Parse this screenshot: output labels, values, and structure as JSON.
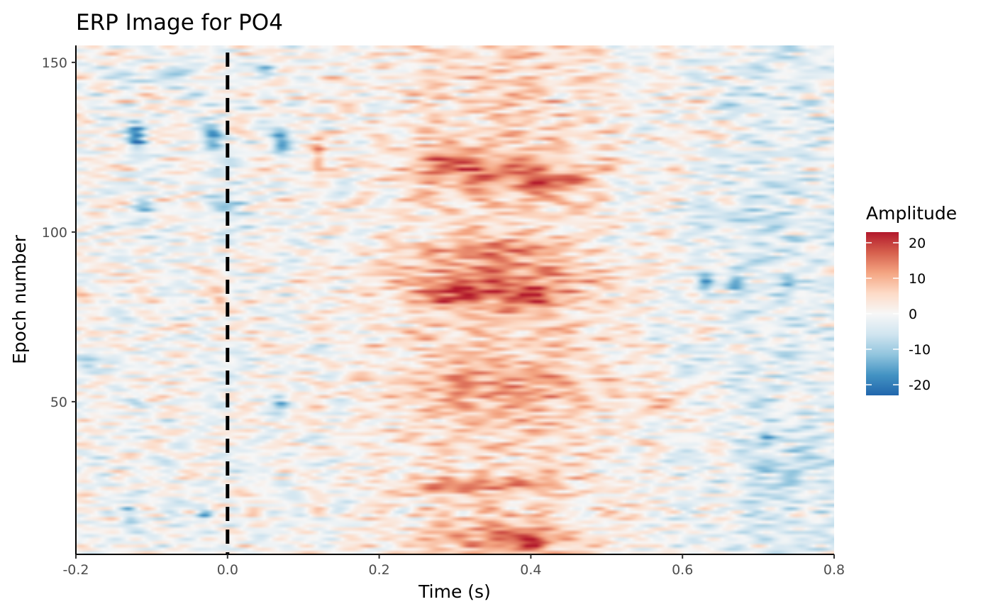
{
  "chart_data": {
    "type": "heatmap",
    "title": "ERP Image for PO4",
    "xlabel": "Time (s)",
    "ylabel": "Epoch number",
    "xlim": [
      -0.2,
      0.8
    ],
    "ylim": [
      5,
      155
    ],
    "x_ticks": [
      -0.2,
      0.0,
      0.2,
      0.4,
      0.6,
      0.8
    ],
    "x_tick_labels": [
      "-0.2",
      "0.0",
      "0.2",
      "0.4",
      "0.6",
      "0.8"
    ],
    "y_ticks": [
      50,
      100,
      150
    ],
    "y_tick_labels": [
      "50",
      "100",
      "150"
    ],
    "vline": {
      "x": 0.0,
      "style": "dashed",
      "color": "#000000"
    },
    "legend": {
      "title": "Amplitude",
      "placement": "right",
      "ticks": [
        20,
        10,
        0,
        -10,
        -20
      ],
      "tick_labels": [
        "20",
        "10",
        "0",
        "-10",
        "-20"
      ],
      "range": [
        -23,
        23
      ],
      "colors": [
        "#2166ac",
        "#4393c3",
        "#92c5de",
        "#d1e5f0",
        "#f7f7f7",
        "#fddbc7",
        "#f4a582",
        "#d6604d",
        "#b2182b"
      ]
    },
    "grid": false,
    "epoch_range": [
      5,
      155
    ],
    "time_range": [
      -0.2,
      0.8
    ],
    "features": [
      {
        "t": -0.12,
        "epoch": 128,
        "amp": -18,
        "ts": 0.013,
        "es": 4
      },
      {
        "t": -0.02,
        "epoch": 128,
        "amp": -16,
        "ts": 0.014,
        "es": 3.5
      },
      {
        "t": 0.07,
        "epoch": 127,
        "amp": -17,
        "ts": 0.013,
        "es": 4
      },
      {
        "t": 0.12,
        "epoch": 122,
        "amp": 12,
        "ts": 0.01,
        "es": 5
      },
      {
        "t": -0.13,
        "epoch": 146,
        "amp": -8,
        "ts": 0.02,
        "es": 3
      },
      {
        "t": -0.06,
        "epoch": 146,
        "amp": -8,
        "ts": 0.02,
        "es": 3
      },
      {
        "t": 0.05,
        "epoch": 147,
        "amp": -9,
        "ts": 0.015,
        "es": 3
      },
      {
        "t": 0.35,
        "epoch": 117,
        "amp": 9,
        "ts": 0.12,
        "es": 5
      },
      {
        "t": 0.43,
        "epoch": 114,
        "amp": 11,
        "ts": 0.04,
        "es": 3
      },
      {
        "t": 0.3,
        "epoch": 122,
        "amp": 8,
        "ts": 0.05,
        "es": 4
      },
      {
        "t": 0.35,
        "epoch": 85,
        "amp": 9,
        "ts": 0.13,
        "es": 8
      },
      {
        "t": 0.3,
        "epoch": 82,
        "amp": 11,
        "ts": 0.04,
        "es": 3
      },
      {
        "t": 0.4,
        "epoch": 81,
        "amp": 10,
        "ts": 0.03,
        "es": 3
      },
      {
        "t": 0.34,
        "epoch": 95,
        "amp": 8,
        "ts": 0.1,
        "es": 3
      },
      {
        "t": 0.63,
        "epoch": 85,
        "amp": -16,
        "ts": 0.012,
        "es": 3
      },
      {
        "t": 0.67,
        "epoch": 86,
        "amp": -10,
        "ts": 0.012,
        "es": 3
      },
      {
        "t": 0.74,
        "epoch": 85,
        "amp": -12,
        "ts": 0.012,
        "es": 3
      },
      {
        "t": 0.35,
        "epoch": 55,
        "amp": 7,
        "ts": 0.13,
        "es": 9
      },
      {
        "t": 0.29,
        "epoch": 25,
        "amp": 10,
        "ts": 0.06,
        "es": 2
      },
      {
        "t": 0.38,
        "epoch": 26,
        "amp": 7,
        "ts": 0.08,
        "es": 2
      },
      {
        "t": 0.35,
        "epoch": 10,
        "amp": 8,
        "ts": 0.12,
        "es": 4
      },
      {
        "t": 0.4,
        "epoch": 9,
        "amp": 10,
        "ts": 0.03,
        "es": 3
      },
      {
        "t": -0.13,
        "epoch": 17,
        "amp": -11,
        "ts": 0.012,
        "es": 3
      },
      {
        "t": -0.03,
        "epoch": 17,
        "amp": -11,
        "ts": 0.012,
        "es": 3
      },
      {
        "t": 0.07,
        "epoch": 49,
        "amp": -12,
        "ts": 0.012,
        "es": 2.5
      },
      {
        "t": -0.12,
        "epoch": 50,
        "amp": -7,
        "ts": 0.012,
        "es": 2
      },
      {
        "t": -0.19,
        "epoch": 82,
        "amp": 7,
        "ts": 0.015,
        "es": 3
      },
      {
        "t": -0.01,
        "epoch": 80,
        "amp": 8,
        "ts": 0.012,
        "es": 3
      },
      {
        "t": -0.18,
        "epoch": 62,
        "amp": -7,
        "ts": 0.015,
        "es": 4
      },
      {
        "t": 0.0,
        "epoch": 108,
        "amp": -7,
        "ts": 0.03,
        "es": 4
      },
      {
        "t": -0.11,
        "epoch": 107,
        "amp": -8,
        "ts": 0.015,
        "es": 4
      },
      {
        "t": 0.71,
        "epoch": 40,
        "amp": -8,
        "ts": 0.01,
        "es": 3
      },
      {
        "t": 0.68,
        "epoch": 105,
        "amp": -5,
        "ts": 0.07,
        "es": 3
      },
      {
        "t": 0.58,
        "epoch": 50,
        "amp": 5,
        "ts": 0.05,
        "es": 5
      },
      {
        "t": 0.65,
        "epoch": 130,
        "amp": 4,
        "ts": 0.03,
        "es": 4
      },
      {
        "t": 0.75,
        "epoch": 30,
        "amp": -4,
        "ts": 0.06,
        "es": 8
      }
    ]
  }
}
